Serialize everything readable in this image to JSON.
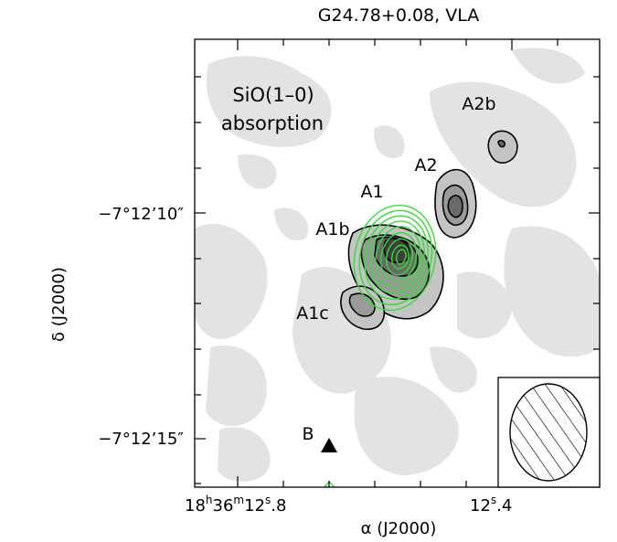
{
  "chart_data": {
    "type": "contour",
    "title": "G24.78+0.08, VLA",
    "panel_label": [
      "SiO(1–0)",
      "absorption"
    ],
    "xlabel": "α (J2000)",
    "ylabel": "δ (J2000)",
    "x_ticks": [
      {
        "label_parts": [
          {
            "t": "18",
            "sup": false
          },
          {
            "t": "h",
            "sup": true
          },
          {
            "t": "36",
            "sup": false
          },
          {
            "t": "m",
            "sup": true
          },
          {
            "t": "12",
            "sup": false
          },
          {
            "t": "s",
            "sup": true
          },
          {
            "t": ".8",
            "sup": false
          }
        ]
      },
      {
        "label_parts": [
          {
            "t": "12",
            "sup": false
          },
          {
            "t": "s",
            "sup": true
          },
          {
            "t": ".4",
            "sup": false
          }
        ]
      }
    ],
    "y_ticks": [
      {
        "label": "−7°12’10″"
      },
      {
        "label": "−7°12’15″"
      }
    ],
    "sources": [
      {
        "name": "A2b"
      },
      {
        "name": "A2"
      },
      {
        "name": "A1"
      },
      {
        "name": "A1b"
      },
      {
        "name": "A1c"
      },
      {
        "name": "B"
      }
    ],
    "series": [
      {
        "kind": "grayscale_contours"
      },
      {
        "kind": "overlay_contours"
      }
    ],
    "beam": {
      "hatched": true
    },
    "colors": {
      "background_gray": "#e3e3e3",
      "contour_fill_1": "#c4c4c4",
      "contour_fill_2": "#9a9a9a",
      "contour_fill_3": "#6a6a6a",
      "contour_fill_4": "#3e3e3e",
      "overlay_contour": "#33dd33",
      "axis": "#000000"
    }
  }
}
